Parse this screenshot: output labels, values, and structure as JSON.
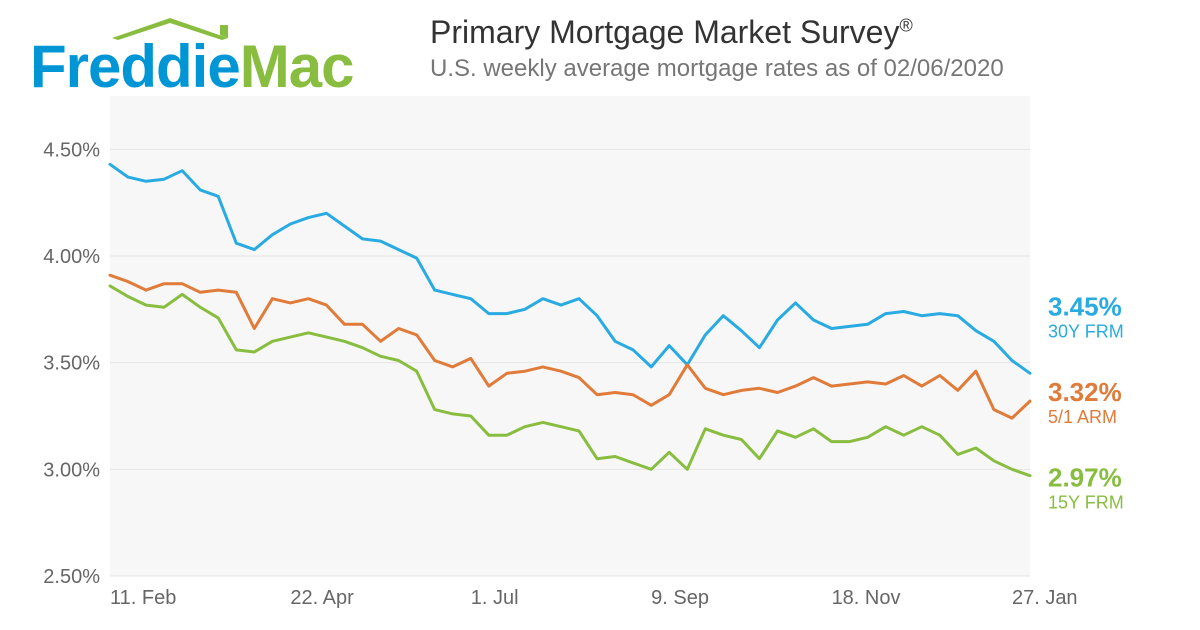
{
  "logo": {
    "part1": "Freddie",
    "part2": "Mac",
    "part1_color": "#0096d6",
    "part2_color": "#88bd40",
    "roof_color": "#88bd40"
  },
  "title": "Primary Mortgage Market Survey",
  "title_reg": "®",
  "subtitle": "U.S. weekly average mortgage rates as of 02/06/2020",
  "chart": {
    "type": "line",
    "background_color": "#f7f7f7",
    "grid_color": "#e6e6e6",
    "axis_label_color": "#666666",
    "axis_fontsize": 20,
    "line_width": 3,
    "n_points": 52,
    "ylim": [
      2.5,
      4.75
    ],
    "yticks": [
      {
        "v": 2.5,
        "label": "2.50%"
      },
      {
        "v": 3.0,
        "label": "3.00%"
      },
      {
        "v": 3.5,
        "label": "3.50%"
      },
      {
        "v": 4.0,
        "label": "4.00%"
      },
      {
        "v": 4.5,
        "label": "4.50%"
      }
    ],
    "xticks": [
      {
        "i": 0,
        "label": "11. Feb"
      },
      {
        "i": 10,
        "label": "22. Apr"
      },
      {
        "i": 20,
        "label": "1. Jul"
      },
      {
        "i": 30,
        "label": "9. Sep"
      },
      {
        "i": 40,
        "label": "18. Nov"
      },
      {
        "i": 50,
        "label": "27. Jan"
      }
    ],
    "series": [
      {
        "id": "frm30",
        "color": "#29abe2",
        "end_value": "3.45%",
        "end_name": "30Y FRM",
        "values": [
          4.43,
          4.37,
          4.35,
          4.36,
          4.4,
          4.31,
          4.28,
          4.06,
          4.03,
          4.1,
          4.15,
          4.18,
          4.2,
          4.14,
          4.08,
          4.07,
          4.03,
          3.99,
          3.84,
          3.82,
          3.8,
          3.73,
          3.73,
          3.75,
          3.8,
          3.77,
          3.8,
          3.72,
          3.6,
          3.56,
          3.48,
          3.58,
          3.49,
          3.63,
          3.72,
          3.65,
          3.57,
          3.7,
          3.78,
          3.7,
          3.66,
          3.67,
          3.68,
          3.73,
          3.74,
          3.72,
          3.73,
          3.72,
          3.65,
          3.6,
          3.51,
          3.45
        ]
      },
      {
        "id": "arm51",
        "color": "#e07b39",
        "end_value": "3.32%",
        "end_name": "5/1 ARM",
        "values": [
          3.91,
          3.88,
          3.84,
          3.87,
          3.87,
          3.83,
          3.84,
          3.83,
          3.66,
          3.8,
          3.78,
          3.8,
          3.77,
          3.68,
          3.68,
          3.6,
          3.66,
          3.63,
          3.51,
          3.48,
          3.52,
          3.39,
          3.45,
          3.46,
          3.48,
          3.46,
          3.43,
          3.35,
          3.36,
          3.35,
          3.3,
          3.35,
          3.49,
          3.38,
          3.35,
          3.37,
          3.38,
          3.36,
          3.39,
          3.43,
          3.39,
          3.4,
          3.41,
          3.4,
          3.44,
          3.39,
          3.44,
          3.37,
          3.46,
          3.28,
          3.24,
          3.32
        ]
      },
      {
        "id": "frm15",
        "color": "#88bd40",
        "end_value": "2.97%",
        "end_name": "15Y FRM",
        "values": [
          3.86,
          3.81,
          3.77,
          3.76,
          3.82,
          3.76,
          3.71,
          3.56,
          3.55,
          3.6,
          3.62,
          3.64,
          3.62,
          3.6,
          3.57,
          3.53,
          3.51,
          3.46,
          3.28,
          3.26,
          3.25,
          3.16,
          3.16,
          3.2,
          3.22,
          3.2,
          3.18,
          3.05,
          3.06,
          3.03,
          3.0,
          3.08,
          3.0,
          3.19,
          3.16,
          3.14,
          3.05,
          3.18,
          3.15,
          3.19,
          3.13,
          3.13,
          3.15,
          3.2,
          3.16,
          3.2,
          3.16,
          3.07,
          3.1,
          3.04,
          3.0,
          2.97
        ]
      }
    ]
  }
}
